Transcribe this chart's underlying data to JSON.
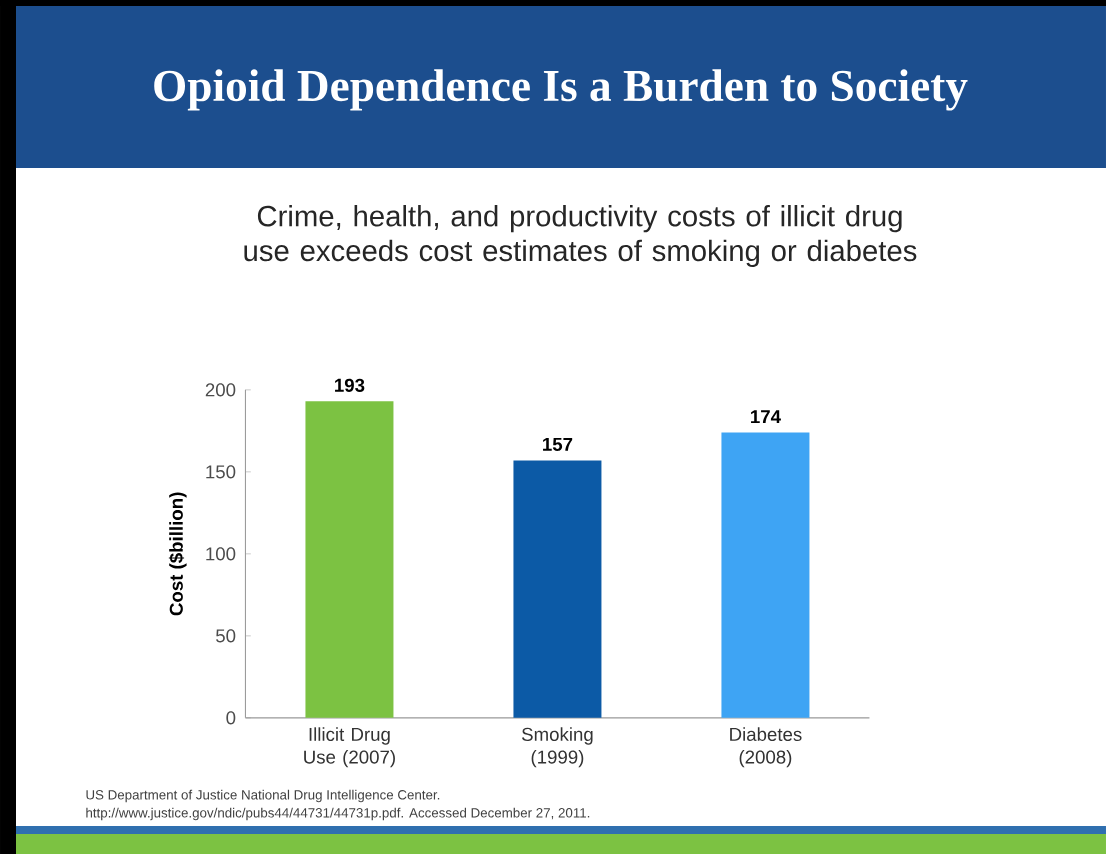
{
  "chart_data": {
    "type": "bar",
    "title": "Opioid Dependence Is a Burden to Society",
    "subtitle": "Crime, health, and productivity costs of illicit drug use exceeds cost estimates of smoking or diabetes",
    "ylabel": "Cost ($billion)",
    "categories": [
      "Illicit Drug Use (2007)",
      "Smoking (1999)",
      "Diabetes (2008)"
    ],
    "values": [
      193,
      157,
      174
    ],
    "colors": [
      "#7cc242",
      "#0c5aa6",
      "#3ea4f4"
    ],
    "ylim": [
      0,
      200
    ],
    "yticks": [
      0,
      50,
      100,
      150,
      200
    ],
    "data_labels": true,
    "grid": false,
    "annotations": [
      "US Department of Justice National Drug Intelligence Center.",
      "http://www.justice.gov/ndic/pubs44/44731/44731p.pdf. Accessed December 27, 2011."
    ]
  }
}
